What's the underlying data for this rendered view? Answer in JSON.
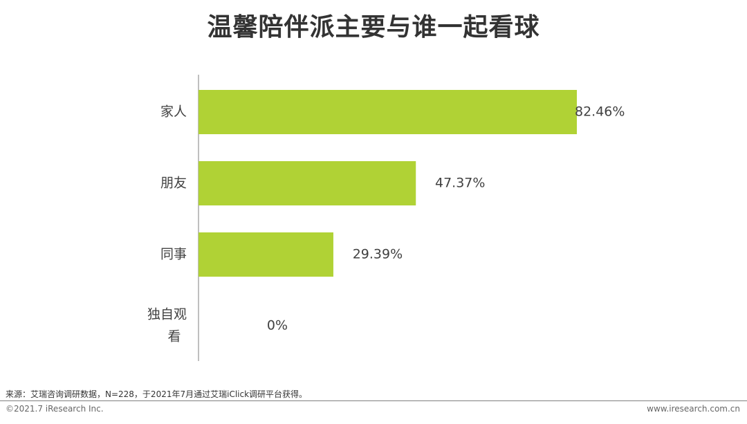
{
  "page": {
    "title": "温馨陪伴派主要与谁一起看球"
  },
  "chart_data": {
    "type": "bar",
    "orientation": "horizontal",
    "categories": [
      "家人",
      "朋友",
      "同事",
      "独自观看"
    ],
    "values": [
      82.46,
      47.37,
      29.39,
      0
    ],
    "value_labels": [
      "82.46%",
      "47.37%",
      "29.39%",
      "0%"
    ],
    "unit": "%",
    "xlim": [
      0,
      100
    ],
    "grid": false,
    "bar_color": "#b0d235"
  },
  "footer": {
    "source": "来源：艾瑞咨询调研数据，N=228，于2021年7月通过艾瑞iClick调研平台获得。",
    "copyright": "©2021.7 iResearch Inc.",
    "website": "www.iresearch.com.cn"
  }
}
